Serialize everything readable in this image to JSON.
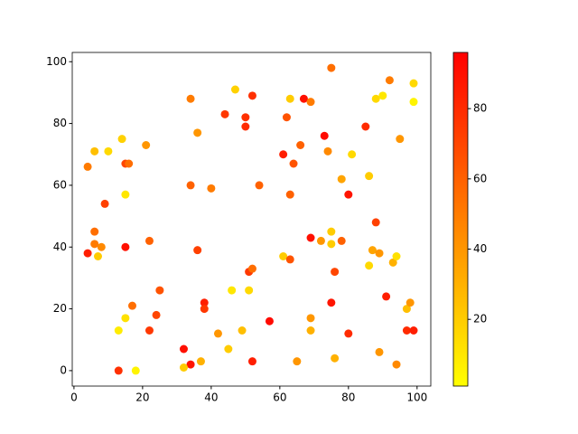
{
  "chart_data": {
    "type": "scatter",
    "x": [
      4,
      6,
      10,
      14,
      15,
      16,
      21,
      9,
      15,
      6,
      6,
      8,
      7,
      4,
      15,
      22,
      25,
      17,
      24,
      15,
      13,
      22,
      13,
      18,
      32,
      34,
      32,
      37,
      36,
      38,
      38,
      42,
      45,
      46,
      49,
      51,
      51,
      52,
      52,
      57,
      34,
      36,
      40,
      34,
      44,
      47,
      50,
      50,
      52,
      54,
      61,
      62,
      63,
      64,
      63,
      61,
      63,
      65,
      66,
      67,
      69,
      69,
      69,
      69,
      72,
      73,
      74,
      75,
      75,
      75,
      76,
      75,
      76,
      78,
      78,
      80,
      81,
      80,
      85,
      86,
      86,
      87,
      88,
      89,
      88,
      90,
      92,
      91,
      89,
      93,
      94,
      94,
      95,
      97,
      98,
      97,
      99,
      99,
      99
    ],
    "values": [
      66,
      71,
      71,
      75,
      67,
      67,
      73,
      54,
      57,
      45,
      41,
      40,
      37,
      38,
      40,
      42,
      26,
      21,
      18,
      17,
      13,
      13,
      0,
      0,
      7,
      2,
      1,
      3,
      39,
      22,
      20,
      12,
      7,
      26,
      13,
      26,
      32,
      33,
      3,
      16,
      88,
      77,
      59,
      60,
      83,
      91,
      82,
      79,
      89,
      60,
      70,
      82,
      88,
      67,
      57,
      37,
      36,
      3,
      73,
      88,
      87,
      43,
      17,
      13,
      42,
      76,
      71,
      98,
      45,
      41,
      32,
      22,
      4,
      62,
      42,
      57,
      70,
      12,
      79,
      63,
      34,
      39,
      48,
      38,
      88,
      89,
      94,
      24,
      6,
      35,
      37,
      2,
      75,
      20,
      22,
      13,
      13,
      93,
      87
    ],
    "c": [
      50,
      25,
      15,
      18,
      70,
      55,
      40,
      72,
      10,
      55,
      50,
      45,
      20,
      85,
      90,
      60,
      65,
      55,
      70,
      12,
      8,
      75,
      78,
      5,
      90,
      88,
      20,
      30,
      72,
      85,
      75,
      40,
      20,
      10,
      25,
      15,
      75,
      55,
      85,
      92,
      50,
      40,
      50,
      60,
      75,
      18,
      78,
      80,
      78,
      60,
      85,
      65,
      20,
      65,
      60,
      20,
      65,
      40,
      60,
      90,
      50,
      90,
      40,
      30,
      40,
      92,
      45,
      55,
      20,
      20,
      70,
      88,
      30,
      35,
      60,
      88,
      15,
      80,
      80,
      20,
      15,
      35,
      72,
      40,
      15,
      10,
      50,
      85,
      40,
      30,
      12,
      45,
      40,
      25,
      40,
      80,
      85,
      15,
      5
    ],
    "xlim": [
      -0.5,
      104
    ],
    "ylim": [
      -5,
      103
    ],
    "xticks": [
      0,
      20,
      40,
      60,
      80,
      100
    ],
    "yticks": [
      0,
      20,
      40,
      60,
      80,
      100
    ],
    "colorbar": {
      "lim": [
        1,
        96
      ],
      "ticks": [
        20,
        40,
        60,
        80
      ],
      "colors": [
        "#ffff00",
        "#ff0000"
      ]
    }
  }
}
